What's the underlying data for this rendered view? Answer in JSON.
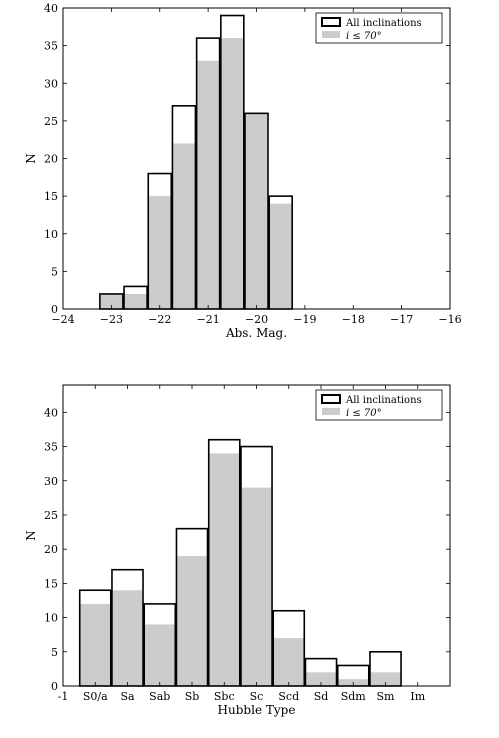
{
  "chart_data": [
    {
      "type": "bar",
      "xlabel": "Abs. Mag.",
      "ylabel": "N",
      "xlim": [
        -24,
        -16
      ],
      "ylim": [
        0,
        40
      ],
      "xticks": [
        -24,
        -23,
        -22,
        -21,
        -20,
        -19,
        -18,
        -17,
        -16
      ],
      "xtick_labels": [
        "−24",
        "−23",
        "−22",
        "−21",
        "−20",
        "−19",
        "−18",
        "−17",
        "−16"
      ],
      "yticks": [
        0,
        5,
        10,
        15,
        20,
        25,
        30,
        35,
        40
      ],
      "bin_width": 0.5,
      "bin_centers": [
        -23,
        -22.5,
        -22,
        -21.5,
        -21,
        -20.5,
        -20,
        -19.5
      ],
      "series": [
        {
          "name": "All inclinations",
          "values": [
            2,
            3,
            18,
            27,
            36,
            39,
            26,
            15
          ]
        },
        {
          "name": "i ≤ 70°",
          "values": [
            2,
            2,
            15,
            22,
            33,
            36,
            26,
            14
          ]
        }
      ],
      "legend": {
        "position": "top-right",
        "entries": [
          "All inclinations",
          "i ≤ 70°"
        ]
      },
      "colors": {
        "all": "#000000",
        "subset": "#cccccc"
      }
    },
    {
      "type": "bar",
      "xlabel": "Hubble Type",
      "ylabel": "N",
      "xlim": [
        -1,
        11
      ],
      "ylim": [
        0,
        44
      ],
      "yticks": [
        0,
        5,
        10,
        15,
        20,
        25,
        30,
        35,
        40
      ],
      "xtick_labels": [
        "-1",
        "S0/a",
        "Sa",
        "Sab",
        "Sb",
        "Sbc",
        "Sc",
        "Scd",
        "Sd",
        "Sdm",
        "Sm",
        "Im"
      ],
      "categories": [
        "S0/a",
        "Sa",
        "Sab",
        "Sb",
        "Sbc",
        "Sc",
        "Scd",
        "Sd",
        "Sdm",
        "Sm"
      ],
      "series": [
        {
          "name": "All inclinations",
          "values": [
            14,
            17,
            12,
            23,
            36,
            35,
            11,
            4,
            3,
            5
          ]
        },
        {
          "name": "i ≤ 70°",
          "values": [
            12,
            14,
            9,
            19,
            34,
            29,
            7,
            2,
            1,
            2
          ]
        }
      ],
      "legend": {
        "position": "top-right",
        "entries": [
          "All inclinations",
          "i ≤ 70°"
        ]
      },
      "colors": {
        "all": "#000000",
        "subset": "#cccccc"
      }
    }
  ]
}
